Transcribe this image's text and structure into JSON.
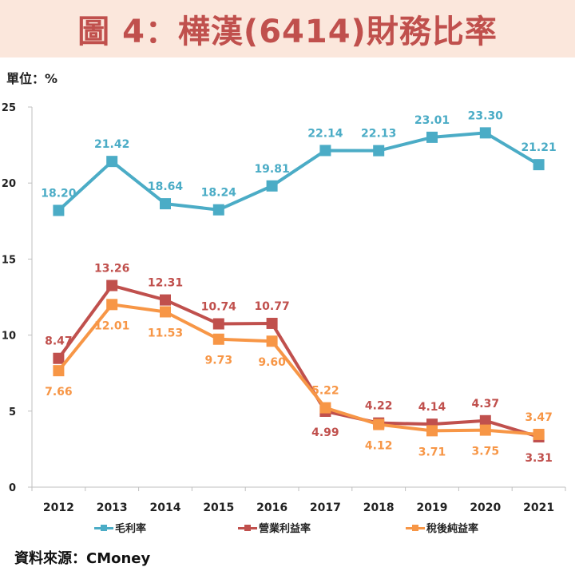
{
  "title": "圖 4：樺漢(6414)財務比率",
  "unit_label": "單位：%",
  "source": "資料來源：CMoney",
  "colors": {
    "title_bg": "#fbe7dc",
    "title_text": "#c0504d"
  },
  "chart_data": {
    "type": "line",
    "title": "圖 4：樺漢(6414)財務比率",
    "xlabel": "",
    "ylabel": "單位：%",
    "ylim": [
      0,
      25
    ],
    "yticks": [
      "0",
      "5",
      "10",
      "15",
      "20",
      "25"
    ],
    "grid": false,
    "legend": "bottom",
    "categories": [
      "2012",
      "2013",
      "2014",
      "2015",
      "2016",
      "2017",
      "2018",
      "2019",
      "2020",
      "2021"
    ],
    "series": [
      {
        "name": "毛利率",
        "color": "#4bacc6",
        "values": [
          18.2,
          21.42,
          18.64,
          18.24,
          19.81,
          22.14,
          22.13,
          23.01,
          23.3,
          21.21
        ],
        "labels": [
          "18.20",
          "21.42",
          "18.64",
          "18.24",
          "19.81",
          "22.14",
          "22.13",
          "23.01",
          "23.30",
          "21.21"
        ]
      },
      {
        "name": "營業利益率",
        "color": "#c0504d",
        "values": [
          8.47,
          13.26,
          12.31,
          10.74,
          10.77,
          4.99,
          4.22,
          4.14,
          4.37,
          3.31
        ],
        "labels": [
          "8.47",
          "13.26",
          "12.31",
          "10.74",
          "10.77",
          "4.99",
          "4.22",
          "4.14",
          "4.37",
          "3.31"
        ]
      },
      {
        "name": "稅後純益率",
        "color": "#f79646",
        "values": [
          7.66,
          12.01,
          11.53,
          9.73,
          9.6,
          5.22,
          4.12,
          3.71,
          3.75,
          3.47
        ],
        "labels": [
          "7.66",
          "12.01",
          "11.53",
          "9.73",
          "9.60",
          "5.22",
          "4.12",
          "3.71",
          "3.75",
          "3.47"
        ]
      }
    ]
  }
}
